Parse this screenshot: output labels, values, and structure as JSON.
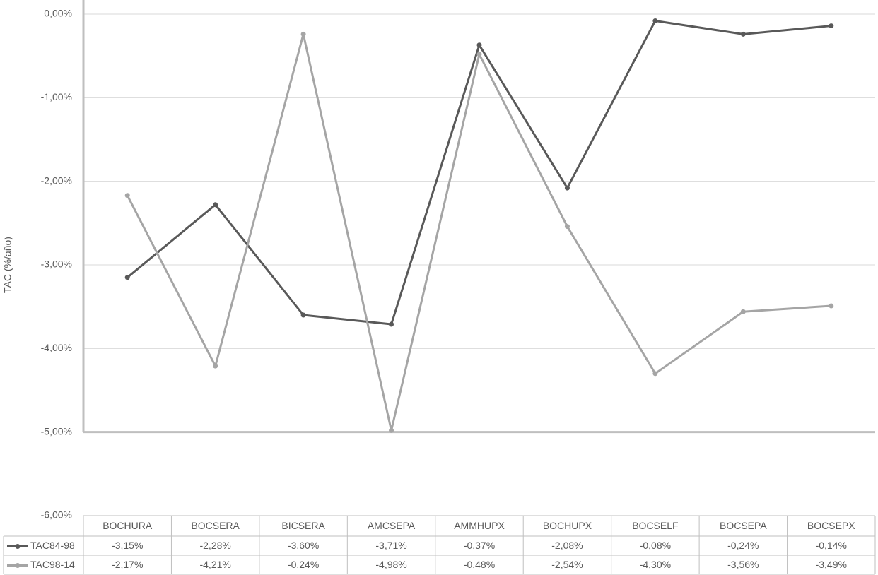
{
  "chart_data": {
    "type": "line",
    "y_label": "TAC (%/año)",
    "categories": [
      "BOCHURA",
      "BOCSERA",
      "BICSERA",
      "AMCSEPA",
      "AMMHUPX",
      "BOCHUPX",
      "BOCSELF",
      "BOCSEPA",
      "BOCSEPX"
    ],
    "series": [
      {
        "name": "TAC84-98",
        "color": "#595959",
        "values": [
          -3.15,
          -2.28,
          -3.6,
          -3.71,
          -0.37,
          -2.08,
          -0.08,
          -0.24,
          -0.14
        ],
        "value_labels": [
          "-3,15%",
          "-2,28%",
          "-3,60%",
          "-3,71%",
          "-0,37%",
          "-2,08%",
          "-0,08%",
          "-0,24%",
          "-0,14%"
        ]
      },
      {
        "name": "TAC98-14",
        "color": "#a5a5a5",
        "values": [
          -2.17,
          -4.21,
          -0.24,
          -4.98,
          -0.48,
          -2.54,
          -4.3,
          -3.56,
          -3.49
        ],
        "value_labels": [
          "-2,17%",
          "-4,21%",
          "-0,24%",
          "-4,98%",
          "-0,48%",
          "-2,54%",
          "-4,30%",
          "-3,56%",
          "-3,49%"
        ]
      }
    ],
    "ylim": [
      -6,
      0
    ],
    "yticks": [
      {
        "value": 0,
        "label": "0,00%"
      },
      {
        "value": -1,
        "label": "-1,00%"
      },
      {
        "value": -2,
        "label": "-2,00%"
      },
      {
        "value": -3,
        "label": "-3,00%"
      },
      {
        "value": -4,
        "label": "-4,00%"
      },
      {
        "value": -5,
        "label": "-5,00%"
      },
      {
        "value": -6,
        "label": "-6,00%"
      }
    ],
    "x_axis_crosses": -5,
    "grid": true,
    "data_table": true
  }
}
